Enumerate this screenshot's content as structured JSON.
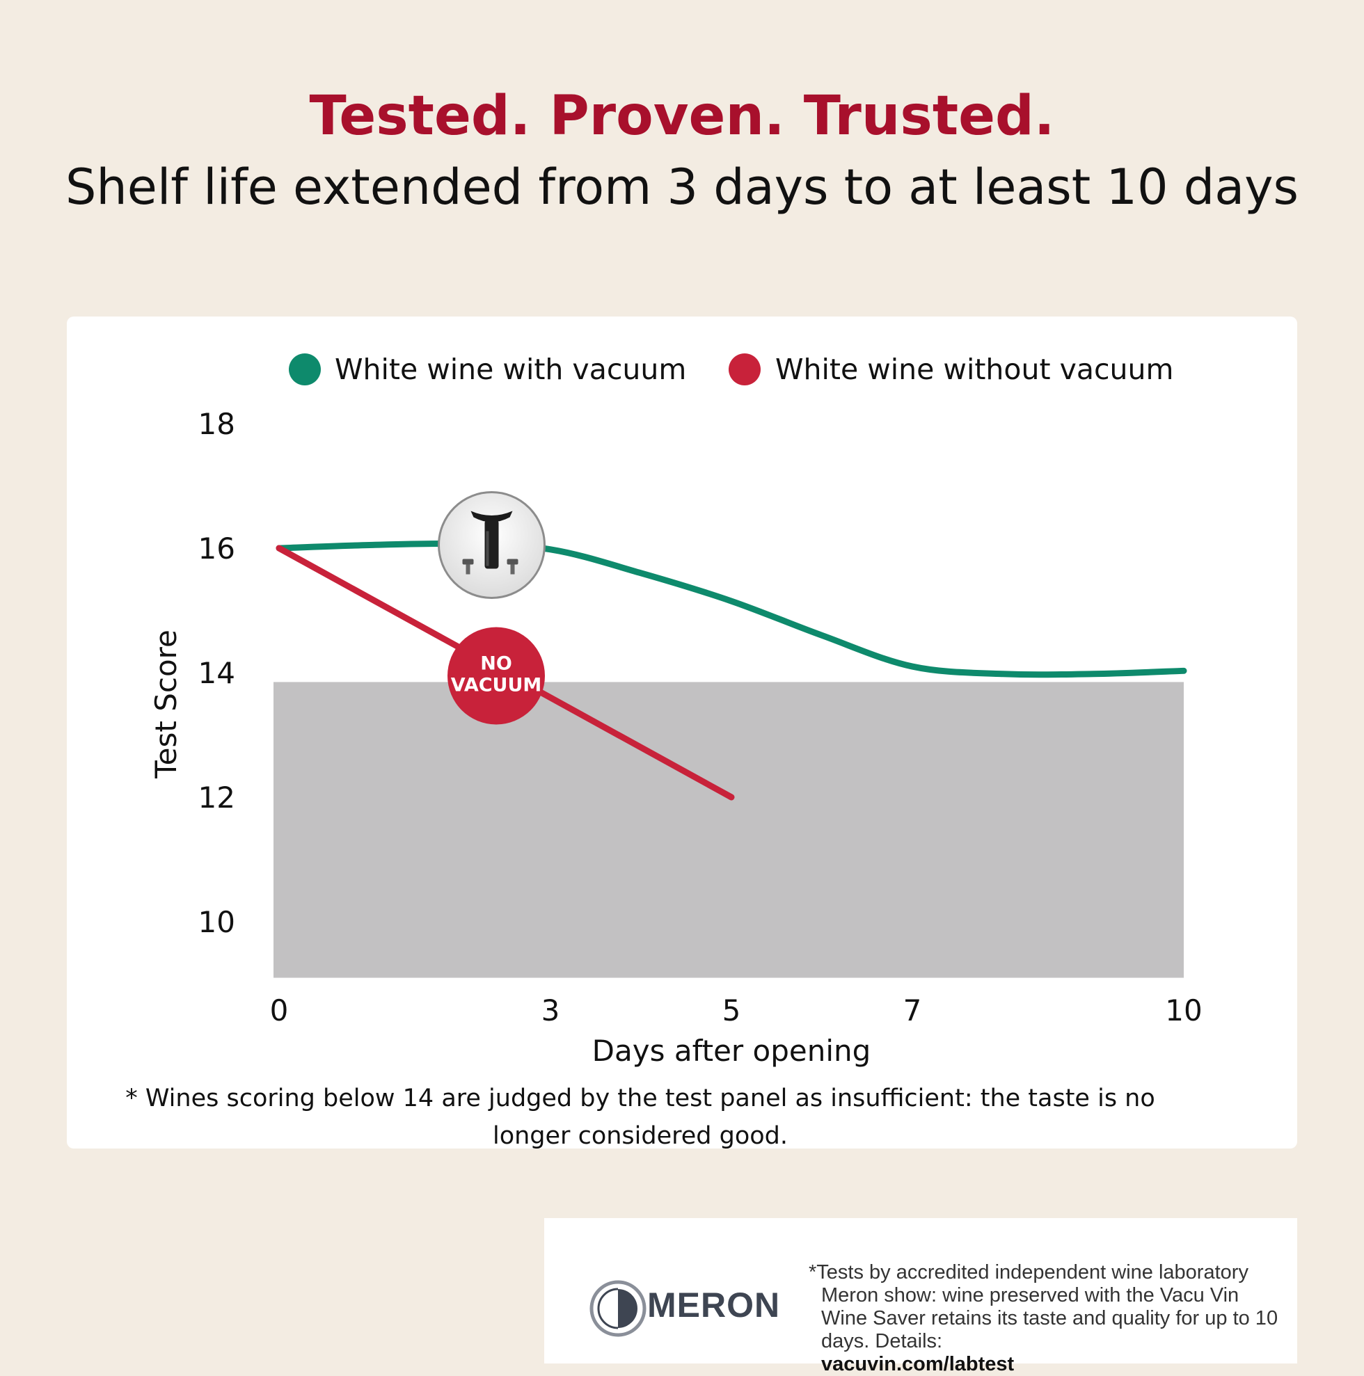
{
  "header": {
    "title": "Tested. Proven. Trusted.",
    "subtitle": "Shelf life extended from 3 days to at least 10 days"
  },
  "colors": {
    "brand_red": "#a8102c",
    "series_green": "#0e8a6c",
    "series_red": "#c8223a",
    "threshold_band": "#c2c1c2"
  },
  "chart_data": {
    "type": "line",
    "xlabel": "Days after opening",
    "ylabel": "Test Score",
    "x_ticks": [
      0,
      3,
      5,
      7,
      10
    ],
    "y_ticks": [
      10,
      12,
      14,
      16,
      18
    ],
    "xlim": [
      0,
      10
    ],
    "ylim": [
      9.1,
      18
    ],
    "legend_position": "top",
    "threshold": {
      "below": 13.85
    },
    "series": [
      {
        "name": "White wine with vacuum",
        "color": "#0e8a6c",
        "x": [
          0,
          1,
          2,
          3,
          4,
          5,
          6,
          7,
          8,
          9,
          10
        ],
        "y": [
          16.0,
          16.05,
          16.07,
          15.98,
          15.6,
          15.15,
          14.6,
          14.1,
          13.98,
          13.98,
          14.03
        ]
      },
      {
        "name": "White wine without vacuum",
        "color": "#c8223a",
        "x": [
          0,
          5
        ],
        "y": [
          16.0,
          12.0
        ]
      }
    ],
    "annotations": [
      {
        "text_lines": [
          "NO",
          "VACUUM"
        ],
        "x": 2.4,
        "y": 13.95,
        "color": "#c8223a"
      },
      {
        "icon": "vacuum-pump-icon",
        "x": 2.35,
        "y": 16.05
      }
    ]
  },
  "footnote": "* Wines scoring below 14 are judged by the test panel as insufficient: the taste is no longer considered good.",
  "lab": {
    "logo_text": "MERON",
    "disclaimer": "*Tests by accredited independent wine laboratory Meron show: wine preserved with the Vacu Vin Wine Saver retains its taste and quality for up to 10 days. Details:",
    "url": "vacuvin.com/labtest"
  }
}
